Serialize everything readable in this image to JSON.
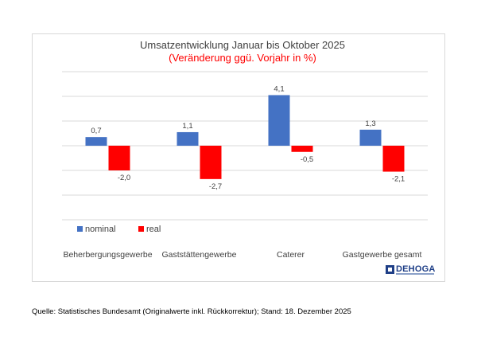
{
  "chart_data": {
    "type": "bar",
    "title": "Umsatzentwicklung Januar bis Oktober 2025",
    "subtitle": "(Veränderung ggü. Vorjahr in %)",
    "categories": [
      "Beherbergungsgewerbe",
      "Gaststättengewerbe",
      "Caterer",
      "Gastgewerbe gesamt"
    ],
    "series": [
      {
        "name": "nominal",
        "color": "#4472c4",
        "values": [
          0.7,
          1.1,
          4.1,
          1.3
        ],
        "labels": [
          "0,7",
          "1,1",
          "4,1",
          "1,3"
        ]
      },
      {
        "name": "real",
        "color": "#ff0000",
        "values": [
          -2.0,
          -2.7,
          -0.5,
          -2.1
        ],
        "labels": [
          "-2,0",
          "-2,7",
          "-0,5",
          "-2,1"
        ]
      }
    ],
    "ylim": [
      -6,
      6
    ],
    "grid": true,
    "legend": "bottom-left"
  },
  "source": "Quelle: Statistisches Bundesamt (Originalwerte inkl. Rückkorrektur); Stand: 18. Dezember 2025",
  "logo": {
    "text": "DEHOGA",
    "icon": "dehoga-logo-icon"
  }
}
